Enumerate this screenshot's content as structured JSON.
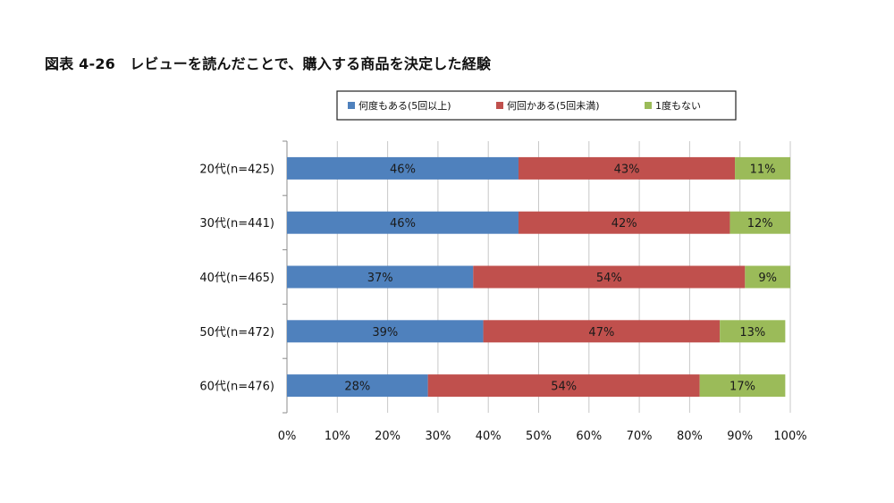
{
  "chart_data": {
    "type": "bar",
    "orientation": "horizontal",
    "stacked": true,
    "title": "図表 4-26　レビューを読んだことで、購入する商品を決定した経験",
    "categories": [
      "20代(n=425)",
      "30代(n=441)",
      "40代(n=465)",
      "50代(n=472)",
      "60代(n=476)"
    ],
    "series": [
      {
        "name": "何度もある(5回以上)",
        "color": "#4f81bd",
        "values": [
          46,
          46,
          37,
          39,
          28
        ]
      },
      {
        "name": "何回かある(5回未満)",
        "color": "#c0504d",
        "values": [
          43,
          42,
          54,
          47,
          54
        ]
      },
      {
        "name": "1度もない",
        "color": "#9bbb59",
        "values": [
          11,
          12,
          9,
          13,
          17
        ]
      }
    ],
    "x_ticks": [
      "0%",
      "10%",
      "20%",
      "30%",
      "40%",
      "50%",
      "60%",
      "70%",
      "80%",
      "90%",
      "100%"
    ],
    "xlim": [
      0,
      100
    ],
    "grid": true,
    "legend_position": "top"
  }
}
